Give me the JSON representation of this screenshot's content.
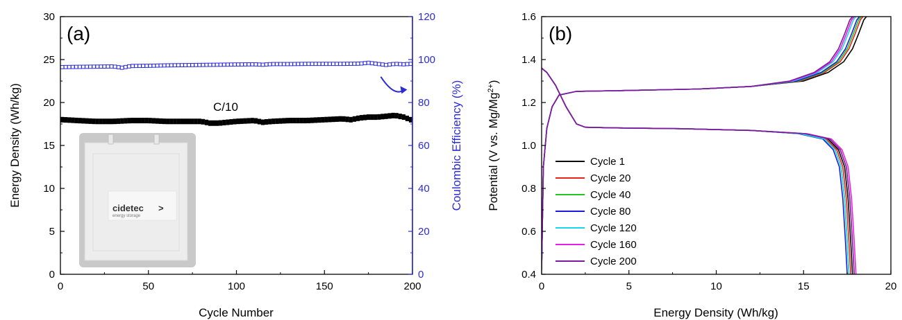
{
  "chart_data": [
    {
      "type": "scatter",
      "panel_label": "(a)",
      "xlabel": "Cycle Number",
      "ylabel": "Energy Density (Wh/kg)",
      "y2label": "Coulombic Efficiency (%)",
      "xlim": [
        0,
        200
      ],
      "ylim": [
        0,
        30
      ],
      "y2lim": [
        0,
        120
      ],
      "x_ticks": [
        0,
        50,
        100,
        150,
        200
      ],
      "y_ticks": [
        0,
        5,
        10,
        15,
        20,
        25,
        30
      ],
      "y2_ticks": [
        0,
        20,
        40,
        60,
        80,
        100,
        120
      ],
      "grid": false,
      "annotation": "C/10",
      "inset_logo_text": "cidetec",
      "inset_logo_mark": ">",
      "inset_logo_subtext": "energy storage",
      "arrow": {
        "from": [
          182,
          92
        ],
        "to": [
          197,
          86
        ],
        "direction": "points to right (Coulombic Efficiency) axis"
      },
      "series": [
        {
          "axis": "left",
          "color": "#000000",
          "x": [
            1,
            10,
            20,
            30,
            40,
            50,
            60,
            70,
            80,
            85,
            90,
            95,
            100,
            110,
            115,
            120,
            130,
            140,
            150,
            160,
            165,
            170,
            175,
            180,
            185,
            190,
            195,
            199
          ],
          "values": [
            18.0,
            17.9,
            17.8,
            17.8,
            17.9,
            17.9,
            17.8,
            17.8,
            17.8,
            17.6,
            17.6,
            17.7,
            17.8,
            17.9,
            17.7,
            17.8,
            17.9,
            17.9,
            18.0,
            18.1,
            18.0,
            18.2,
            18.3,
            18.3,
            18.4,
            18.5,
            18.3,
            18.0
          ]
        },
        {
          "axis": "right",
          "color": "#2b2bd8",
          "x": [
            1,
            10,
            20,
            30,
            35,
            40,
            50,
            60,
            70,
            80,
            90,
            100,
            110,
            115,
            120,
            130,
            140,
            150,
            160,
            170,
            175,
            180,
            185,
            190,
            195,
            199
          ],
          "values": [
            96.5,
            96.6,
            96.7,
            96.8,
            96.2,
            97.0,
            97.1,
            97.3,
            97.4,
            97.5,
            97.6,
            97.7,
            97.8,
            97.6,
            97.9,
            97.9,
            98.0,
            98.0,
            98.0,
            98.1,
            98.5,
            98.0,
            97.5,
            98.0,
            97.8,
            98.0
          ]
        }
      ]
    },
    {
      "type": "line",
      "panel_label": "(b)",
      "xlabel": "Energy Density (Wh/kg)",
      "ylabel": "Potential (V vs. Mg/Mg",
      "ylabel_sup": "2+",
      "ylabel_end": ")",
      "xlim": [
        0,
        20
      ],
      "ylim": [
        0.4,
        1.6
      ],
      "x_ticks": [
        0,
        5,
        10,
        15,
        20
      ],
      "y_ticks": [
        0.4,
        0.6,
        0.8,
        1.0,
        1.2,
        1.4,
        1.6
      ],
      "grid": false,
      "legend_position": "bottom-left",
      "series": [
        {
          "name": "Cycle 1",
          "color": "#000000",
          "charge_end": 18.6,
          "discharge_end": 17.8
        },
        {
          "name": "Cycle 20",
          "color": "#e8231b",
          "charge_end": 18.4,
          "discharge_end": 17.7
        },
        {
          "name": "Cycle 40",
          "color": "#22c322",
          "charge_end": 18.3,
          "discharge_end": 17.6
        },
        {
          "name": "Cycle 80",
          "color": "#1a1adf",
          "charge_end": 18.2,
          "discharge_end": 17.5
        },
        {
          "name": "Cycle 120",
          "color": "#17d6e6",
          "charge_end": 18.0,
          "discharge_end": 17.6
        },
        {
          "name": "Cycle 160",
          "color": "#e61ee6",
          "charge_end": 17.9,
          "discharge_end": 18.0
        },
        {
          "name": "Cycle 200",
          "color": "#7a1a9a",
          "charge_end": 17.8,
          "discharge_end": 17.9
        }
      ]
    }
  ]
}
